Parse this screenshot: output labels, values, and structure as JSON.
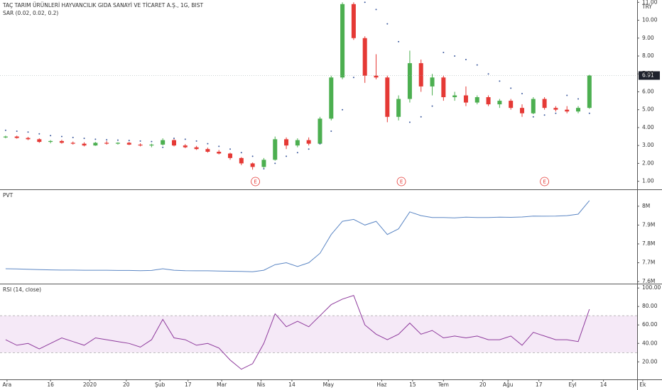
{
  "chart_data": [
    {
      "type": "candlestick",
      "title": "TAÇ TARIM ÜRÜNLERİ HAYVANCILIK GIDA SANAYİ VE TİCARET A.Ş., 1G, BIST",
      "subtitle": "SAR (0.02, 0.02, 0.2)",
      "currency": "TRY",
      "up_color": "#4caf50",
      "down_color": "#e53935",
      "x": [
        0,
        4,
        8,
        12,
        16,
        20,
        24,
        28,
        32,
        36,
        40,
        44,
        48,
        52,
        56,
        60,
        64,
        68,
        72,
        76,
        80,
        84,
        88,
        92,
        96,
        100,
        104,
        108,
        112,
        116,
        120,
        124,
        128,
        132,
        136,
        140,
        144,
        148,
        152,
        156,
        160,
        164,
        168,
        172,
        176,
        180,
        184,
        188,
        192,
        196,
        200,
        204,
        208
      ],
      "open": [
        3.45,
        3.5,
        3.42,
        3.35,
        3.2,
        3.25,
        3.15,
        3.1,
        3.0,
        3.15,
        3.1,
        3.15,
        3.05,
        3.0,
        3.05,
        3.3,
        3.0,
        2.9,
        2.8,
        2.65,
        2.55,
        2.3,
        2.0,
        1.8,
        2.2,
        3.35,
        3.0,
        3.3,
        3.1,
        4.5,
        6.8,
        10.9,
        9.0,
        6.9,
        6.8,
        4.6,
        5.6,
        7.6,
        6.3,
        6.8,
        5.7,
        5.8,
        5.4,
        5.7,
        5.3,
        5.5,
        5.1,
        4.8,
        5.6,
        5.1,
        5.0,
        4.9,
        5.1
      ],
      "high": [
        3.55,
        3.55,
        3.48,
        3.4,
        3.3,
        3.32,
        3.22,
        3.18,
        3.2,
        3.25,
        3.18,
        3.2,
        3.12,
        3.1,
        3.4,
        3.35,
        3.08,
        2.98,
        2.88,
        2.75,
        2.6,
        2.35,
        2.05,
        2.3,
        3.5,
        3.45,
        3.4,
        3.45,
        4.6,
        6.9,
        11.0,
        11.0,
        9.1,
        8.1,
        6.9,
        5.8,
        8.3,
        7.8,
        7.0,
        6.9,
        6.0,
        6.3,
        5.8,
        5.8,
        5.6,
        5.6,
        5.3,
        5.7,
        5.7,
        5.2,
        5.2,
        5.2,
        6.95
      ],
      "low": [
        3.4,
        3.38,
        3.3,
        3.15,
        3.12,
        3.1,
        3.05,
        2.95,
        2.98,
        3.05,
        3.05,
        3.02,
        2.95,
        2.9,
        3.0,
        2.95,
        2.85,
        2.75,
        2.6,
        2.5,
        2.2,
        1.9,
        1.65,
        1.75,
        2.15,
        2.8,
        2.9,
        3.0,
        3.05,
        4.4,
        6.7,
        8.9,
        6.5,
        6.7,
        4.3,
        4.4,
        5.4,
        6.0,
        5.8,
        5.5,
        5.5,
        5.2,
        5.3,
        5.2,
        5.1,
        5.0,
        4.6,
        4.75,
        5.0,
        4.9,
        4.8,
        4.8,
        5.05
      ],
      "close": [
        3.5,
        3.42,
        3.35,
        3.2,
        3.25,
        3.15,
        3.1,
        3.0,
        3.15,
        3.1,
        3.15,
        3.05,
        3.0,
        3.05,
        3.3,
        3.0,
        2.9,
        2.8,
        2.65,
        2.55,
        2.3,
        2.0,
        1.8,
        2.2,
        3.35,
        3.0,
        3.3,
        3.1,
        4.5,
        6.8,
        10.9,
        9.0,
        6.9,
        6.8,
        4.6,
        5.6,
        7.6,
        6.3,
        6.8,
        5.7,
        5.8,
        5.4,
        5.7,
        5.3,
        5.5,
        5.1,
        4.8,
        5.6,
        5.1,
        5.0,
        4.9,
        5.1,
        6.91
      ],
      "sar": {
        "color": "#3d5a9e",
        "values": [
          3.85,
          3.8,
          3.75,
          3.65,
          3.55,
          3.5,
          3.45,
          3.4,
          3.35,
          3.32,
          3.3,
          3.28,
          3.25,
          3.22,
          2.9,
          3.4,
          3.35,
          3.25,
          3.1,
          2.95,
          2.8,
          2.6,
          2.4,
          1.7,
          2.0,
          2.4,
          2.6,
          2.8,
          3.1,
          3.8,
          5.0,
          6.8,
          11.0,
          10.6,
          9.8,
          8.8,
          4.3,
          4.6,
          5.2,
          8.2,
          8.0,
          7.8,
          7.5,
          7.0,
          6.6,
          6.2,
          5.9,
          4.6,
          4.7,
          4.8,
          5.8,
          5.6,
          4.8
        ]
      },
      "annotations": [
        {
          "x": 89,
          "label": "E"
        },
        {
          "x": 141,
          "label": "E"
        },
        {
          "x": 192,
          "label": "E"
        }
      ],
      "xlim": [
        -2,
        225
      ],
      "ylim": [
        0.55,
        11.13
      ],
      "yticks": [
        {
          "value": 1,
          "label": "1.00"
        },
        {
          "value": 2,
          "label": "2.00"
        },
        {
          "value": 3,
          "label": "3.00"
        },
        {
          "value": 4,
          "label": "4.00"
        },
        {
          "value": 5,
          "label": "5.00"
        },
        {
          "value": 6,
          "label": "6.00"
        },
        {
          "value": 7,
          "label": "7.00"
        },
        {
          "value": 8,
          "label": "8.00"
        },
        {
          "value": 9,
          "label": "9.00"
        },
        {
          "value": 10,
          "label": "10.00"
        },
        {
          "value": 11,
          "label": "11.00"
        }
      ]
    },
    {
      "type": "line",
      "title": "PVT",
      "color": "#5b86c4",
      "x": [
        0,
        4,
        8,
        12,
        16,
        20,
        24,
        28,
        32,
        36,
        40,
        44,
        48,
        52,
        56,
        60,
        64,
        68,
        72,
        76,
        80,
        84,
        88,
        92,
        96,
        100,
        104,
        108,
        112,
        116,
        120,
        124,
        128,
        132,
        136,
        140,
        144,
        148,
        152,
        156,
        160,
        164,
        168,
        172,
        176,
        180,
        184,
        188,
        192,
        196,
        200,
        204,
        208
      ],
      "values": [
        7668000,
        7667000,
        7665000,
        7663000,
        7662000,
        7661000,
        7661000,
        7660000,
        7660000,
        7660000,
        7659000,
        7659000,
        7658000,
        7659000,
        7668000,
        7660000,
        7658000,
        7657000,
        7657000,
        7656000,
        7655000,
        7654000,
        7652000,
        7660000,
        7690000,
        7700000,
        7680000,
        7700000,
        7750000,
        7850000,
        7920000,
        7930000,
        7900000,
        7920000,
        7850000,
        7880000,
        7970000,
        7950000,
        7940000,
        7940000,
        7938000,
        7942000,
        7940000,
        7940000,
        7942000,
        7941000,
        7943000,
        7948000,
        7947000,
        7948000,
        7950000,
        7958000,
        8030000
      ],
      "xlim": [
        -2,
        225
      ],
      "ylim": [
        7589000,
        8086000
      ],
      "yticks": [
        {
          "value": 7600000,
          "label": "7.6M"
        },
        {
          "value": 7700000,
          "label": "7.7M"
        },
        {
          "value": 7800000,
          "label": "7.8M"
        },
        {
          "value": 7900000,
          "label": "7.9M"
        },
        {
          "value": 8000000,
          "label": "8M"
        }
      ]
    },
    {
      "type": "line",
      "title": "RSI (14, close)",
      "color": "#8e3a9c",
      "band": [
        30,
        70
      ],
      "band_color": "#9c27b0",
      "x": [
        0,
        4,
        8,
        12,
        16,
        20,
        24,
        28,
        32,
        36,
        40,
        44,
        48,
        52,
        56,
        60,
        64,
        68,
        72,
        76,
        80,
        84,
        88,
        92,
        96,
        100,
        104,
        108,
        112,
        116,
        120,
        124,
        128,
        132,
        136,
        140,
        144,
        148,
        152,
        156,
        160,
        164,
        168,
        172,
        176,
        180,
        184,
        188,
        192,
        196,
        200,
        204,
        208
      ],
      "values": [
        44,
        38,
        40,
        34,
        40,
        46,
        42,
        38,
        46,
        44,
        42,
        40,
        36,
        44,
        66,
        46,
        44,
        38,
        40,
        35,
        22,
        12,
        18,
        40,
        72,
        58,
        64,
        58,
        70,
        82,
        88,
        92,
        60,
        50,
        44,
        50,
        62,
        50,
        54,
        46,
        48,
        46,
        48,
        44,
        44,
        48,
        38,
        52,
        48,
        44,
        44,
        42,
        77
      ],
      "xlim": [
        -2,
        225
      ],
      "ylim": [
        1,
        104
      ],
      "yticks": [
        {
          "value": 20,
          "label": "20.00"
        },
        {
          "value": 40,
          "label": "40.00"
        },
        {
          "value": 60,
          "label": "60.00"
        },
        {
          "value": 80,
          "label": "80.00"
        },
        {
          "value": 100,
          "label": "100.00"
        }
      ],
      "xticks": [
        {
          "value": 0.5,
          "label": "Ara"
        },
        {
          "value": 16,
          "label": "16"
        },
        {
          "value": 30,
          "label": "2020"
        },
        {
          "value": 43,
          "label": "20"
        },
        {
          "value": 55,
          "label": "Şub"
        },
        {
          "value": 65,
          "label": "17"
        },
        {
          "value": 77,
          "label": "Mar"
        },
        {
          "value": 91,
          "label": "Nis"
        },
        {
          "value": 102,
          "label": "14"
        },
        {
          "value": 115,
          "label": "May"
        },
        {
          "value": 134,
          "label": "Haz"
        },
        {
          "value": 145,
          "label": "15"
        },
        {
          "value": 156,
          "label": "Tem"
        },
        {
          "value": 170,
          "label": "20"
        },
        {
          "value": 179,
          "label": "Ağu"
        },
        {
          "value": 190,
          "label": "17"
        },
        {
          "value": 202,
          "label": "Eyl"
        },
        {
          "value": 213,
          "label": "14"
        },
        {
          "value": 227,
          "label": "Ek"
        }
      ]
    }
  ]
}
